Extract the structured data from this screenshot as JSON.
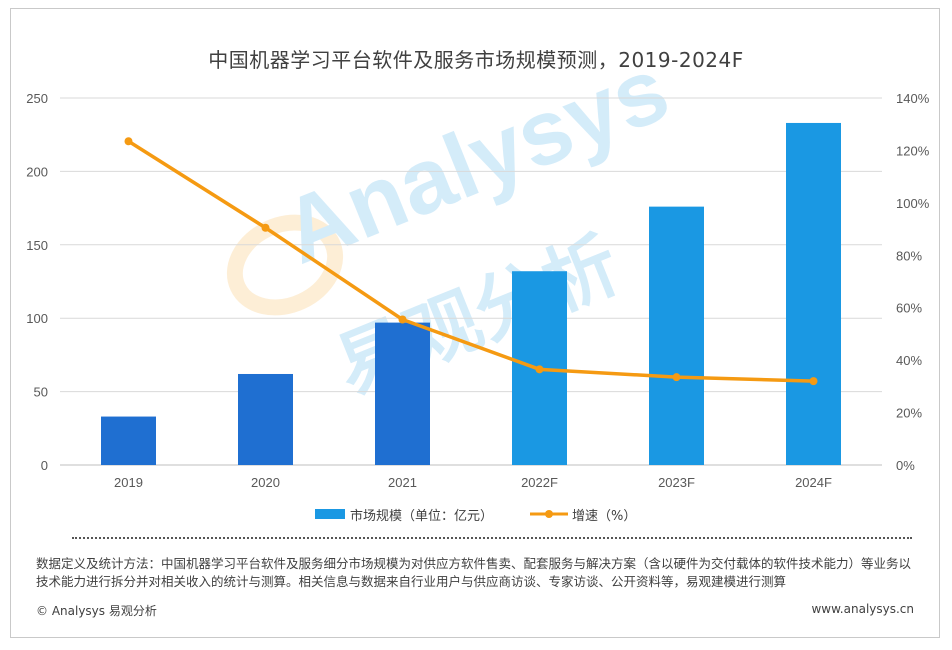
{
  "chart_data": {
    "type": "bar",
    "title": "中国机器学习平台软件及服务市场规模预测，2019-2024F",
    "categories": [
      "2019",
      "2020",
      "2021",
      "2022F",
      "2023F",
      "2024F"
    ],
    "series": [
      {
        "name": "市场规模（单位：亿元）",
        "type": "bar",
        "axis": "left",
        "values": [
          33,
          62,
          97,
          132,
          176,
          233
        ],
        "colors": [
          "#1f6fd1",
          "#1f6fd1",
          "#1f6fd1",
          "#1a98e3",
          "#1a98e3",
          "#1a98e3"
        ]
      },
      {
        "name": "增速（%）",
        "type": "line",
        "axis": "right",
        "values": [
          123.5,
          90.5,
          55.5,
          36.5,
          33.5,
          32
        ],
        "color": "#f59a12"
      }
    ],
    "y_left": {
      "ylim": [
        0,
        250
      ],
      "ticks": [
        "0",
        "50",
        "100",
        "150",
        "200",
        "250"
      ]
    },
    "y_right": {
      "ylim": [
        0,
        140
      ],
      "ticks": [
        "0%",
        "20%",
        "40%",
        "60%",
        "80%",
        "100%",
        "120%",
        "140%"
      ]
    },
    "grid": true,
    "legend": "bottom"
  },
  "watermark": {
    "brand": "Analysys",
    "cn": "易观分析"
  },
  "footer": {
    "note": "数据定义及统计方法：中国机器学习平台软件及服务细分市场规模为对供应方软件售卖、配套服务与解决方案（含以硬件为交付载体的软件技术能力）等业务以技术能力进行拆分并对相关收入的统计与测算。相关信息与数据来自行业用户与供应商访谈、专家访谈、公开资料等，易观建模进行测算",
    "copyright": "© Analysys 易观分析",
    "site": "www.analysys.cn"
  }
}
